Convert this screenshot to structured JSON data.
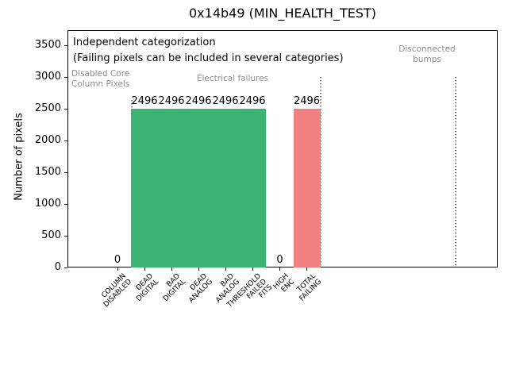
{
  "figure": {
    "background": "#ffffff"
  },
  "chart_data": {
    "type": "bar",
    "title": "0x14b49 (MIN_HEALTH_TEST)",
    "ylabel": "Number of pixels",
    "xlabel": "",
    "ylim": [
      0,
      3740
    ],
    "yticks": [
      0,
      500,
      1000,
      1500,
      2000,
      2500,
      3000,
      3500
    ],
    "grid": false,
    "legend": null,
    "categories": [
      "COLUMN\nDISABLED",
      "DEAD\nDIGITAL",
      "BAD\nDIGITAL",
      "DEAD\nANALOG",
      "BAD\nANALOG",
      "THRESHOLD\nFAILED\nFITS",
      "HIGH\nENC",
      "TOTAL\nFAILING"
    ],
    "values": [
      0,
      2496,
      2496,
      2496,
      2496,
      2496,
      0,
      2496
    ],
    "value_labels": [
      "0",
      "2496",
      "2496",
      "2496",
      "2496",
      "2496",
      "0",
      "2496"
    ],
    "bar_colors": [
      "#3cb371",
      "#3cb371",
      "#3cb371",
      "#3cb371",
      "#3cb371",
      "#3cb371",
      "#3cb371",
      "#f08080"
    ],
    "annotations": [
      "Independent categorization",
      "(Failing pixels can be included in several categories)"
    ],
    "group_labels": [
      "Disabled Core\nColumn Pixels",
      "Electrical failures",
      "Disconnected\nbumps"
    ],
    "separator_style": "dotted"
  },
  "colors": {
    "bar_green": "#3cb371",
    "bar_red": "#f08080",
    "muted_text": "#8e8e8e",
    "separator_line": "#808080",
    "axis": "#000000",
    "text": "#000000"
  }
}
